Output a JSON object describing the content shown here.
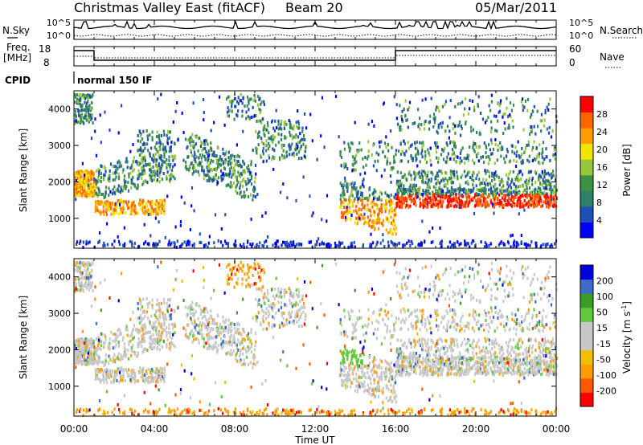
{
  "header": {
    "title": "Christmas Valley East (fitACF)",
    "beam": "Beam 20",
    "date": "05/Mar/2011"
  },
  "chart_data": [
    {
      "type": "line",
      "panel": "noise",
      "left_label": "N.Sky",
      "right_label": "N.Search",
      "yticks_left": [
        "10^5",
        "10^0"
      ],
      "yticks_right": [
        "10^5",
        "10^0"
      ]
    },
    {
      "type": "line",
      "panel": "frequency",
      "left_label_1": "Freq.",
      "left_label_2": "[MHz]",
      "right_label": "Nave",
      "yticks_left": [
        "18",
        "8"
      ],
      "yticks_right": [
        "60",
        "0"
      ],
      "freq_steps": [
        {
          "from": "00:00",
          "to": "01:00",
          "value": "high"
        },
        {
          "from": "01:00",
          "to": "16:00",
          "value": "low"
        },
        {
          "from": "16:00",
          "to": "24:00",
          "value": "high"
        }
      ]
    },
    {
      "type": "text",
      "panel": "cpid",
      "label": "CPID",
      "mode_text": "normal 150 IF"
    },
    {
      "type": "heatmap",
      "panel": "power",
      "ylabel": "Slant Range [km]",
      "yticks": [
        "4000",
        "3000",
        "2000",
        "1000"
      ],
      "ytick_values": [
        4000,
        3000,
        2000,
        1000
      ],
      "ylim": [
        180,
        4500
      ],
      "xlim": [
        0,
        24
      ],
      "colorbar_label": "Power [dB]",
      "colorbar_ticks": [
        "28",
        "24",
        "20",
        "16",
        "12",
        "8",
        "4"
      ],
      "colorbar_colors": [
        "#0000ff",
        "#1f4fb4",
        "#2f7f6e",
        "#3d9140",
        "#96c83c",
        "#f0e600",
        "#ff9c00",
        "#ff6400",
        "#ff0000"
      ]
    },
    {
      "type": "heatmap",
      "panel": "velocity",
      "ylabel": "Slant Range [km]",
      "yticks": [
        "4000",
        "3000",
        "2000",
        "1000"
      ],
      "ytick_values": [
        4000,
        3000,
        2000,
        1000
      ],
      "ylim": [
        180,
        4500
      ],
      "xlim": [
        0,
        24
      ],
      "xlabel": "Time UT",
      "xticks": [
        "00:00",
        "04:00",
        "08:00",
        "12:00",
        "16:00",
        "20:00",
        "00:00"
      ],
      "xtick_values": [
        0,
        4,
        8,
        12,
        16,
        20,
        24
      ],
      "colorbar_label": "Velocity [m s",
      "colorbar_label_sup": "-1",
      "colorbar_label_end": "]",
      "colorbar_ticks": [
        "200",
        "100",
        "50",
        "15",
        "-15",
        "-50",
        "-100",
        "-200"
      ],
      "colorbar_colors": [
        "#ff0000",
        "#ff5a00",
        "#ff9c00",
        "#f0c000",
        "#c8c8c8",
        "#c8c8c8",
        "#5fc83c",
        "#3d9c28",
        "#3c6cc8",
        "#0000dc"
      ]
    }
  ]
}
